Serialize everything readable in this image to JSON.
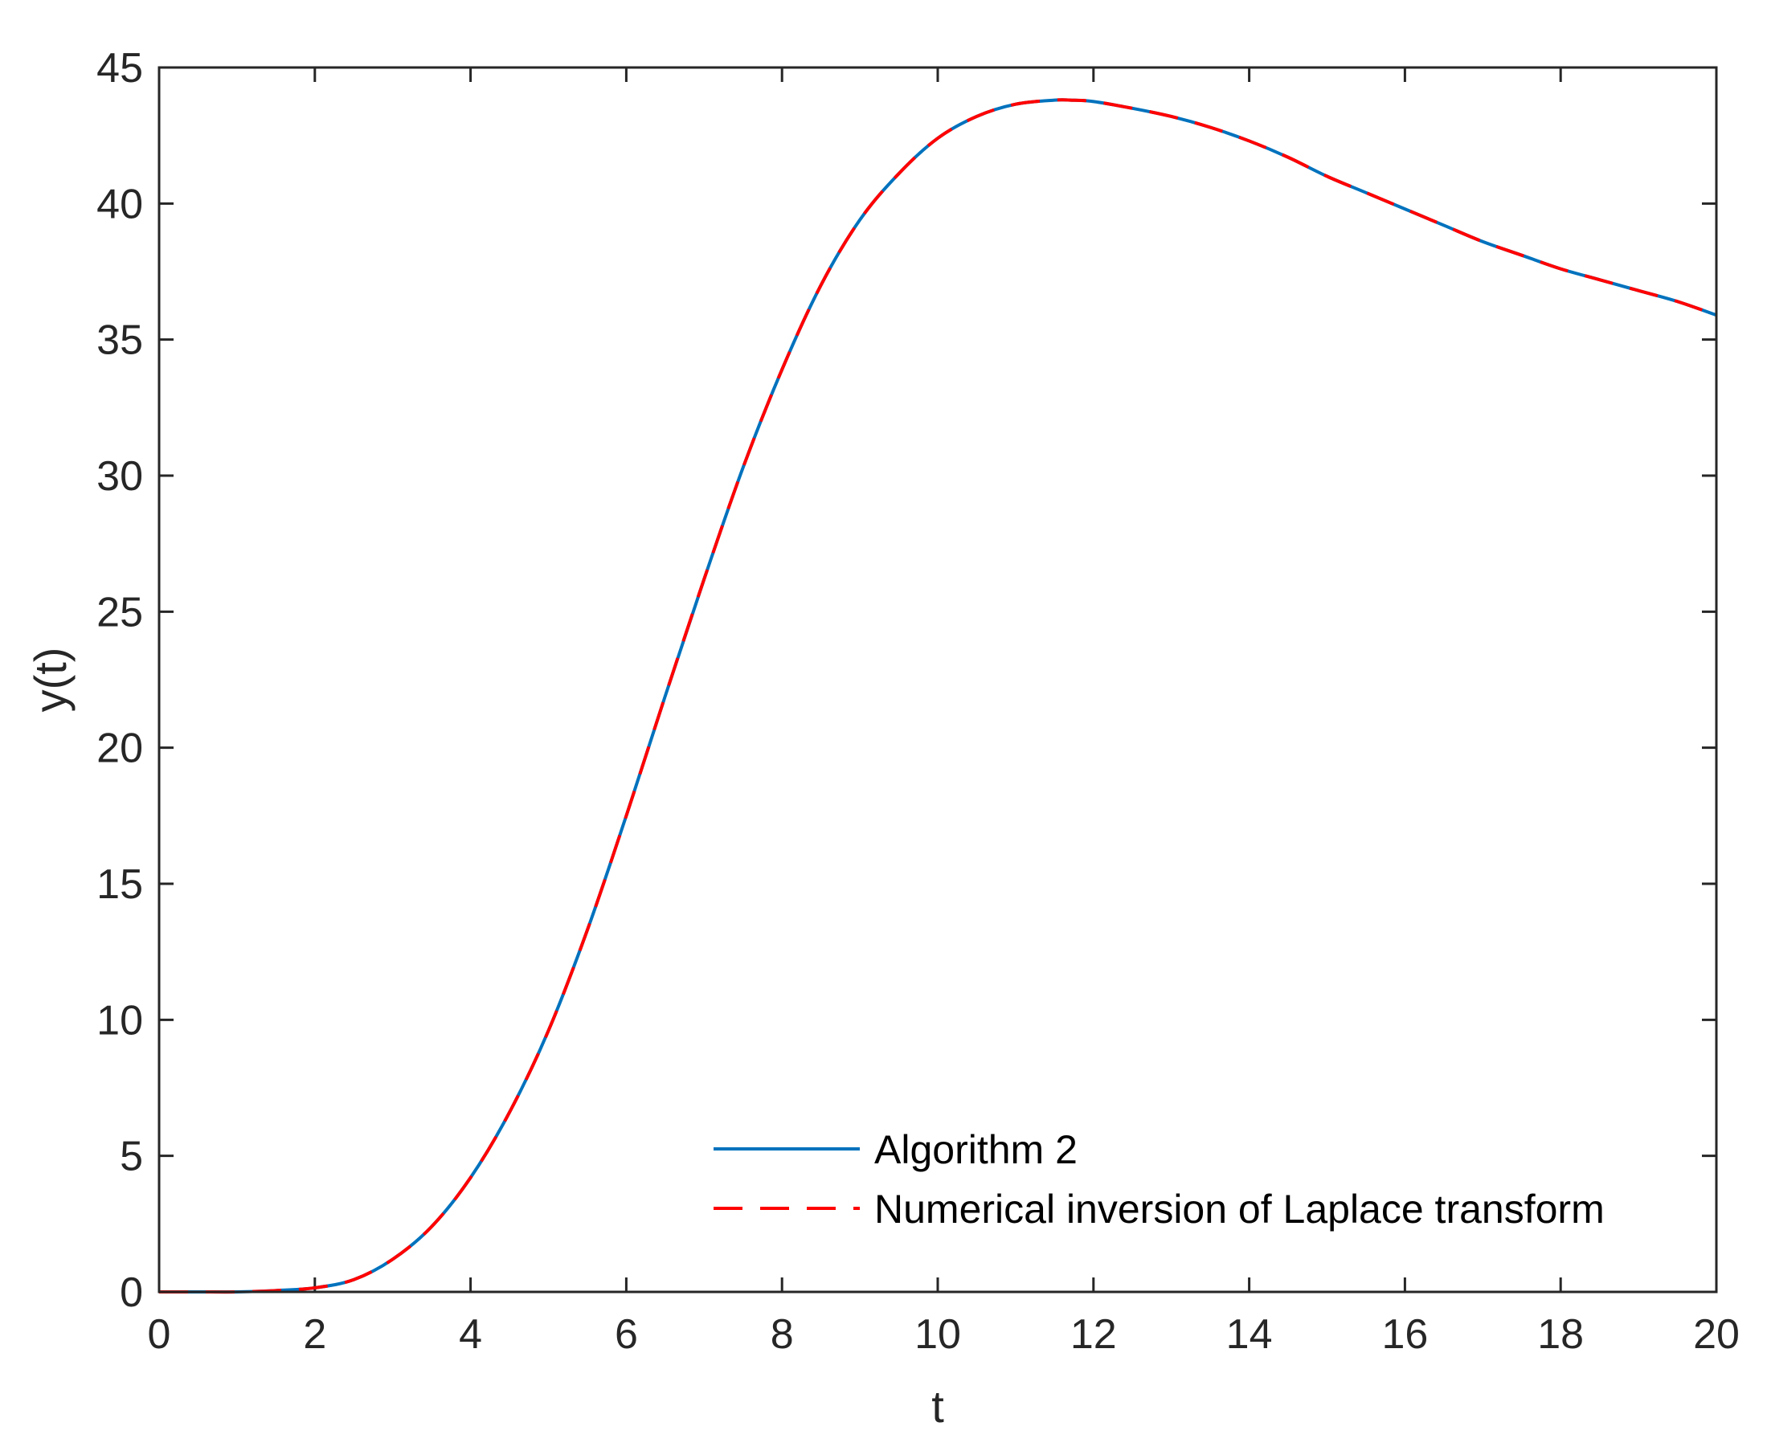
{
  "chart_data": {
    "type": "line",
    "title": "",
    "xlabel": "t",
    "ylabel": "y(t)",
    "xlim": [
      0,
      20
    ],
    "ylim": [
      0,
      45
    ],
    "xticks": [
      0,
      2,
      4,
      6,
      8,
      10,
      12,
      14,
      16,
      18,
      20
    ],
    "yticks": [
      0,
      5,
      10,
      15,
      20,
      25,
      30,
      35,
      40,
      45
    ],
    "xtick_labels": [
      "0",
      "2",
      "4",
      "6",
      "8",
      "10",
      "12",
      "14",
      "16",
      "18",
      "20"
    ],
    "ytick_labels": [
      "0",
      "5",
      "10",
      "15",
      "20",
      "25",
      "30",
      "35",
      "40",
      "45"
    ],
    "grid": false,
    "legend_position": "bottom-right",
    "x": [
      0,
      0.5,
      1,
      1.5,
      2,
      2.5,
      3,
      3.5,
      4,
      4.5,
      5,
      5.5,
      6,
      6.5,
      7,
      7.5,
      8,
      8.5,
      9,
      9.5,
      10,
      10.5,
      11,
      11.5,
      11.7,
      12,
      12.5,
      13,
      13.5,
      14,
      14.5,
      15,
      15.5,
      16,
      16.5,
      17,
      17.5,
      18,
      18.5,
      19,
      19.5,
      20
    ],
    "series": [
      {
        "name": "Algorithm 2",
        "color": "#0072BD",
        "style": "solid",
        "values": [
          0,
          0,
          0,
          0.05,
          0.15,
          0.45,
          1.2,
          2.4,
          4.2,
          6.6,
          9.6,
          13.3,
          17.5,
          21.9,
          26.2,
          30.3,
          33.9,
          37.0,
          39.4,
          41.1,
          42.4,
          43.2,
          43.65,
          43.8,
          43.8,
          43.75,
          43.5,
          43.2,
          42.8,
          42.3,
          41.7,
          41.0,
          40.4,
          39.8,
          39.2,
          38.6,
          38.1,
          37.6,
          37.2,
          36.8,
          36.4,
          35.9
        ]
      },
      {
        "name": "Numerical inversion of Laplace transform",
        "color": "#FF0000",
        "style": "dashed",
        "values": [
          0,
          0,
          0,
          0.05,
          0.15,
          0.45,
          1.2,
          2.4,
          4.2,
          6.6,
          9.6,
          13.3,
          17.5,
          21.9,
          26.2,
          30.3,
          33.9,
          37.0,
          39.4,
          41.1,
          42.4,
          43.2,
          43.65,
          43.8,
          43.8,
          43.75,
          43.5,
          43.2,
          42.8,
          42.3,
          41.7,
          41.0,
          40.4,
          39.8,
          39.2,
          38.6,
          38.1,
          37.6,
          37.2,
          36.8,
          36.4,
          35.9
        ]
      }
    ]
  }
}
